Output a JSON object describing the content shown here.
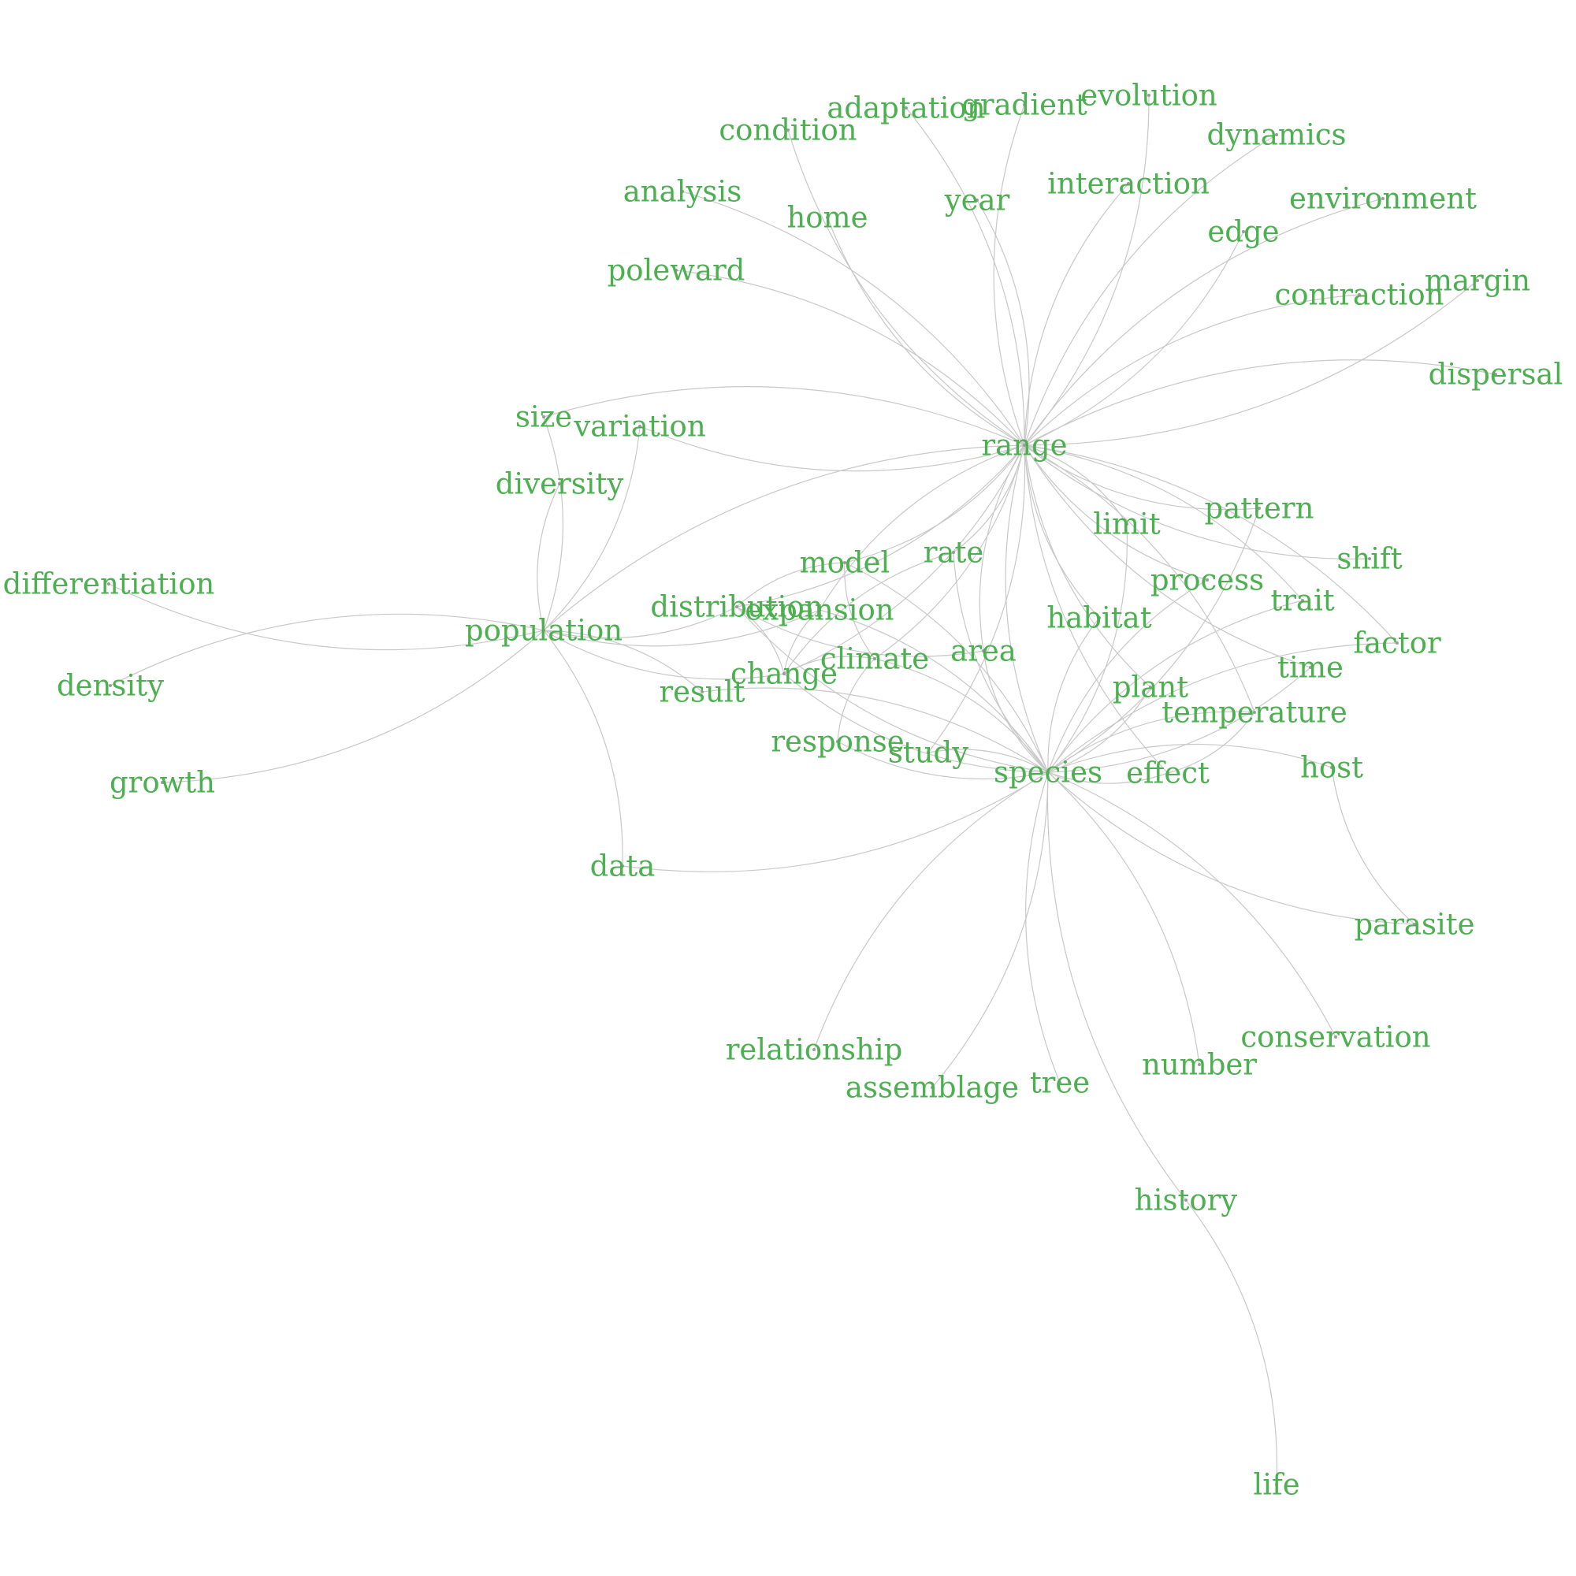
{
  "label_color": "#4caf50",
  "edge_color": "#c8c8c8",
  "nodes": [
    {
      "id": "range",
      "label": "range"
    },
    {
      "id": "species",
      "label": "species"
    },
    {
      "id": "population",
      "label": "population"
    },
    {
      "id": "condition",
      "label": "condition"
    },
    {
      "id": "adaptation",
      "label": "adaptation"
    },
    {
      "id": "gradient",
      "label": "gradient"
    },
    {
      "id": "evolution",
      "label": "evolution"
    },
    {
      "id": "dynamics",
      "label": "dynamics"
    },
    {
      "id": "analysis",
      "label": "analysis"
    },
    {
      "id": "home",
      "label": "home"
    },
    {
      "id": "year",
      "label": "year"
    },
    {
      "id": "interaction",
      "label": "interaction"
    },
    {
      "id": "edge",
      "label": "edge"
    },
    {
      "id": "environment",
      "label": "environment"
    },
    {
      "id": "poleward",
      "label": "poleward"
    },
    {
      "id": "contraction",
      "label": "contraction"
    },
    {
      "id": "margin",
      "label": "margin"
    },
    {
      "id": "dispersal",
      "label": "dispersal"
    },
    {
      "id": "size",
      "label": "size"
    },
    {
      "id": "variation",
      "label": "variation"
    },
    {
      "id": "diversity",
      "label": "diversity"
    },
    {
      "id": "limit",
      "label": "limit"
    },
    {
      "id": "pattern",
      "label": "pattern"
    },
    {
      "id": "differentiation",
      "label": "differentiation"
    },
    {
      "id": "rate",
      "label": "rate"
    },
    {
      "id": "shift",
      "label": "shift"
    },
    {
      "id": "model",
      "label": "model"
    },
    {
      "id": "process",
      "label": "process"
    },
    {
      "id": "distribution",
      "label": "distribution"
    },
    {
      "id": "expansion",
      "label": "expansion"
    },
    {
      "id": "trait",
      "label": "trait"
    },
    {
      "id": "habitat",
      "label": "habitat"
    },
    {
      "id": "factor",
      "label": "factor"
    },
    {
      "id": "area",
      "label": "area"
    },
    {
      "id": "climate",
      "label": "climate"
    },
    {
      "id": "time",
      "label": "time"
    },
    {
      "id": "density",
      "label": "density"
    },
    {
      "id": "change",
      "label": "change"
    },
    {
      "id": "result",
      "label": "result"
    },
    {
      "id": "plant",
      "label": "plant"
    },
    {
      "id": "temperature",
      "label": "temperature"
    },
    {
      "id": "response",
      "label": "response"
    },
    {
      "id": "study",
      "label": "study"
    },
    {
      "id": "host",
      "label": "host"
    },
    {
      "id": "effect",
      "label": "effect"
    },
    {
      "id": "growth",
      "label": "growth"
    },
    {
      "id": "data",
      "label": "data"
    },
    {
      "id": "parasite",
      "label": "parasite"
    },
    {
      "id": "conservation",
      "label": "conservation"
    },
    {
      "id": "relationship",
      "label": "relationship"
    },
    {
      "id": "number",
      "label": "number"
    },
    {
      "id": "tree",
      "label": "tree"
    },
    {
      "id": "assemblage",
      "label": "assemblage"
    },
    {
      "id": "history",
      "label": "history"
    },
    {
      "id": "life",
      "label": "life"
    }
  ],
  "edges": [
    [
      "condition",
      "range"
    ],
    [
      "adaptation",
      "range"
    ],
    [
      "gradient",
      "range"
    ],
    [
      "evolution",
      "range"
    ],
    [
      "dynamics",
      "range"
    ],
    [
      "analysis",
      "range"
    ],
    [
      "home",
      "range"
    ],
    [
      "year",
      "range"
    ],
    [
      "interaction",
      "range"
    ],
    [
      "edge",
      "range"
    ],
    [
      "environment",
      "range"
    ],
    [
      "poleward",
      "range"
    ],
    [
      "contraction",
      "range"
    ],
    [
      "margin",
      "range"
    ],
    [
      "dispersal",
      "range"
    ],
    [
      "size",
      "range"
    ],
    [
      "variation",
      "range"
    ],
    [
      "population",
      "range"
    ],
    [
      "limit",
      "range"
    ],
    [
      "pattern",
      "range"
    ],
    [
      "rate",
      "range"
    ],
    [
      "shift",
      "range"
    ],
    [
      "model",
      "range"
    ],
    [
      "process",
      "range"
    ],
    [
      "distribution",
      "range"
    ],
    [
      "expansion",
      "range"
    ],
    [
      "trait",
      "range"
    ],
    [
      "habitat",
      "range"
    ],
    [
      "factor",
      "range"
    ],
    [
      "area",
      "range"
    ],
    [
      "climate",
      "range"
    ],
    [
      "time",
      "range"
    ],
    [
      "change",
      "range"
    ],
    [
      "plant",
      "range"
    ],
    [
      "temperature",
      "range"
    ],
    [
      "species",
      "range"
    ],
    [
      "study",
      "range"
    ],
    [
      "effect",
      "range"
    ],
    [
      "population",
      "size"
    ],
    [
      "population",
      "diversity"
    ],
    [
      "population",
      "variation"
    ],
    [
      "population",
      "differentiation"
    ],
    [
      "population",
      "density"
    ],
    [
      "population",
      "growth"
    ],
    [
      "population",
      "distribution"
    ],
    [
      "population",
      "result"
    ],
    [
      "population",
      "change"
    ],
    [
      "population",
      "data"
    ],
    [
      "population",
      "expansion"
    ],
    [
      "species",
      "rate"
    ],
    [
      "species",
      "model"
    ],
    [
      "species",
      "distribution"
    ],
    [
      "species",
      "expansion"
    ],
    [
      "species",
      "area"
    ],
    [
      "species",
      "climate"
    ],
    [
      "species",
      "change"
    ],
    [
      "species",
      "result"
    ],
    [
      "species",
      "response"
    ],
    [
      "species",
      "study"
    ],
    [
      "species",
      "habitat"
    ],
    [
      "species",
      "plant"
    ],
    [
      "species",
      "temperature"
    ],
    [
      "species",
      "effect"
    ],
    [
      "species",
      "host"
    ],
    [
      "species",
      "limit"
    ],
    [
      "species",
      "process"
    ],
    [
      "species",
      "pattern"
    ],
    [
      "species",
      "trait"
    ],
    [
      "species",
      "time"
    ],
    [
      "species",
      "factor"
    ],
    [
      "species",
      "parasite"
    ],
    [
      "species",
      "conservation"
    ],
    [
      "species",
      "relationship"
    ],
    [
      "species",
      "number"
    ],
    [
      "species",
      "tree"
    ],
    [
      "species",
      "assemblage"
    ],
    [
      "species",
      "history"
    ],
    [
      "species",
      "data"
    ],
    [
      "climate",
      "change"
    ],
    [
      "climate",
      "model"
    ],
    [
      "climate",
      "response"
    ],
    [
      "change",
      "expansion"
    ],
    [
      "change",
      "distribution"
    ],
    [
      "change",
      "rate"
    ],
    [
      "model",
      "distribution"
    ],
    [
      "area",
      "distribution"
    ],
    [
      "host",
      "parasite"
    ],
    [
      "history",
      "life"
    ],
    [
      "effect",
      "temperature"
    ]
  ]
}
